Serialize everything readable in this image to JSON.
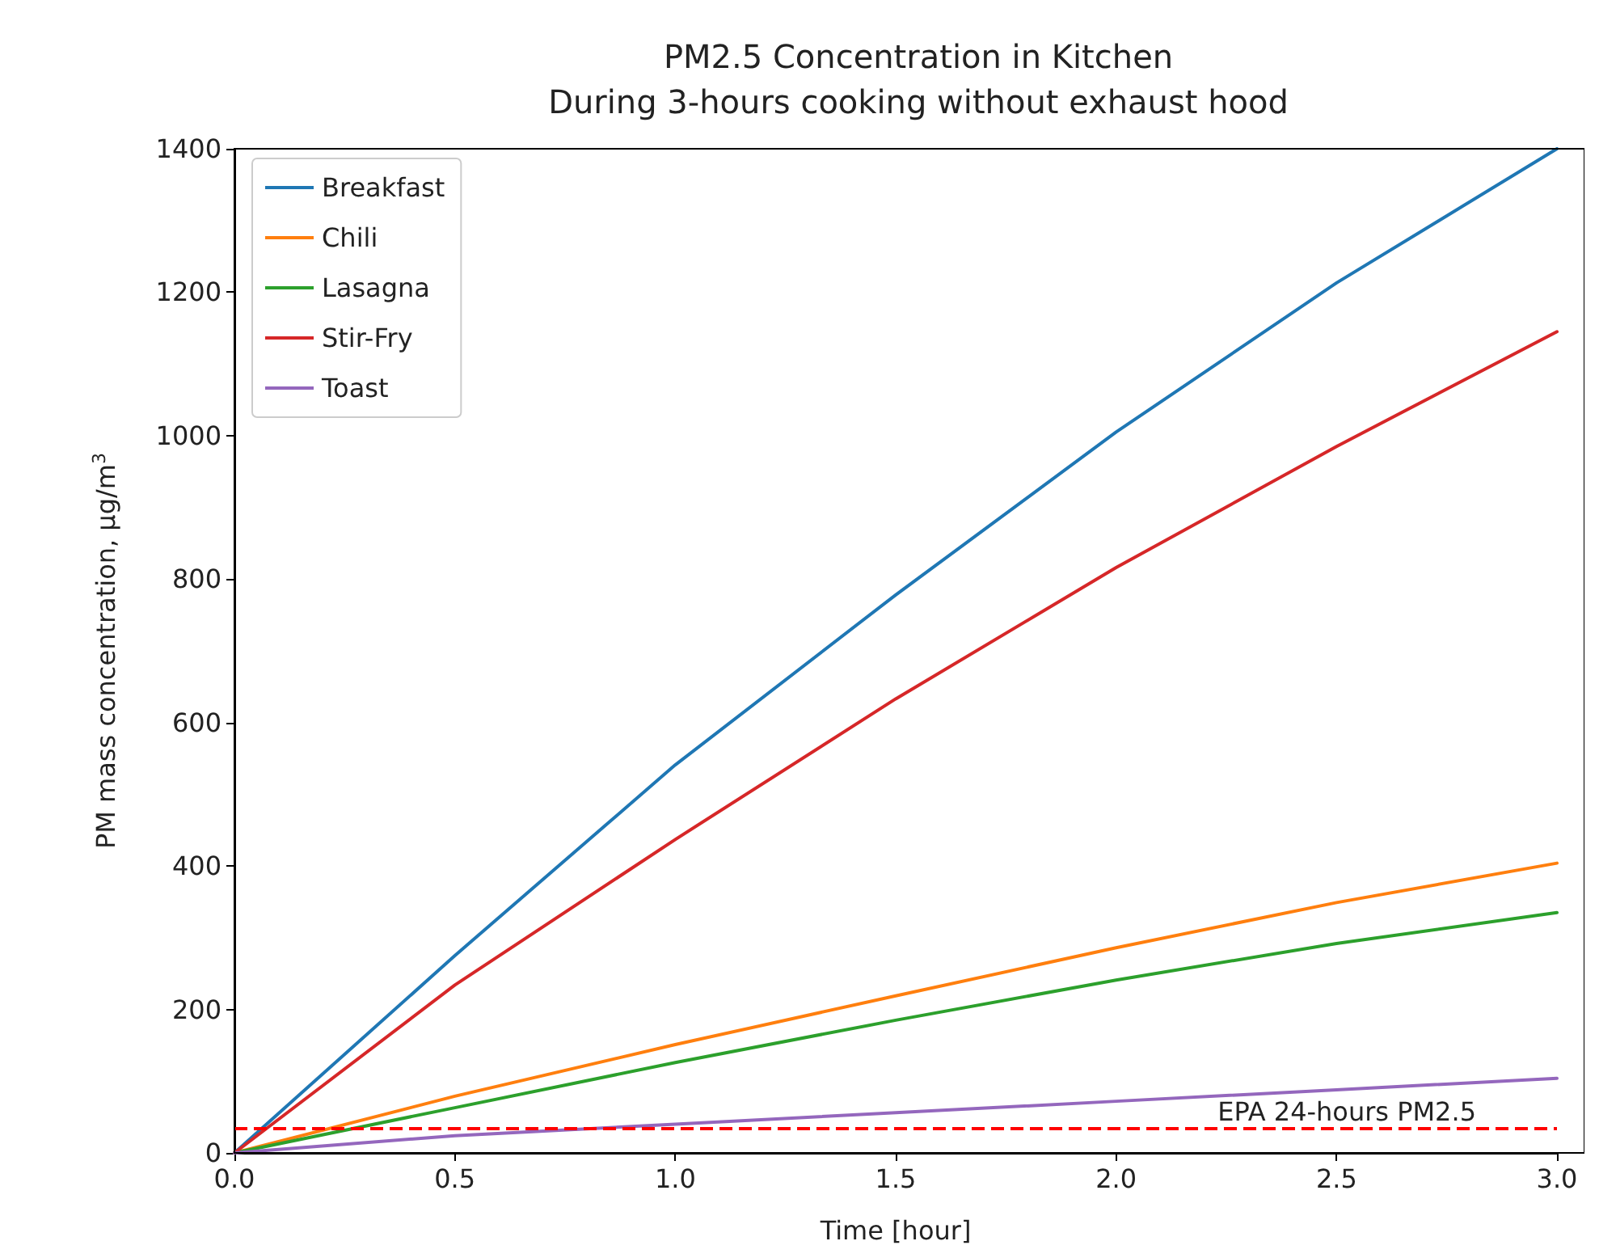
{
  "chart_data": {
    "type": "line",
    "title": "PM2.5 Concentration in Kitchen\nDuring 3-hours cooking without exhaust hood",
    "xlabel": "Time [hour]",
    "ylabel": "PM mass concentration, μg/m$^{3}$",
    "x": [
      0,
      0.5,
      1,
      1.5,
      2,
      2.5,
      3
    ],
    "series": [
      {
        "name": "Breakfast",
        "color": "#1f77b4",
        "values": [
          0,
          275,
          541,
          778,
          1005,
          1213,
          1400
        ]
      },
      {
        "name": "Chili",
        "color": "#ff7f0e",
        "values": [
          0,
          79,
          151,
          219,
          286,
          349,
          404
        ]
      },
      {
        "name": "Lasagna",
        "color": "#2ca02c",
        "values": [
          0,
          63,
          126,
          185,
          241,
          292,
          335
        ]
      },
      {
        "name": "Stir-Fry",
        "color": "#d62728",
        "values": [
          0,
          234,
          437,
          633,
          816,
          985,
          1145
        ]
      },
      {
        "name": "Toast",
        "color": "#9467bd",
        "values": [
          0,
          24,
          40,
          56,
          72,
          88,
          104
        ]
      }
    ],
    "xlim": [
      0,
      3
    ],
    "ylim": [
      0,
      1400
    ],
    "xticks": [
      {
        "value": 0,
        "label": "0.0"
      },
      {
        "value": 0.5,
        "label": "0.5"
      },
      {
        "value": 1,
        "label": "1.0"
      },
      {
        "value": 1.5,
        "label": "1.5"
      },
      {
        "value": 2,
        "label": "2.0"
      },
      {
        "value": 2.5,
        "label": "2.5"
      },
      {
        "value": 3,
        "label": "3.0"
      }
    ],
    "yticks": [
      0,
      200,
      400,
      600,
      800,
      1000,
      1200,
      1400
    ],
    "ref_lines": [
      {
        "axis": "y",
        "value": 35,
        "label": "EPA 24-hours PM2.5",
        "color": "#ff0000",
        "line_style": "dashed"
      }
    ],
    "grid": false,
    "legend": "top left",
    "marker": "none",
    "line_style": "solid"
  }
}
